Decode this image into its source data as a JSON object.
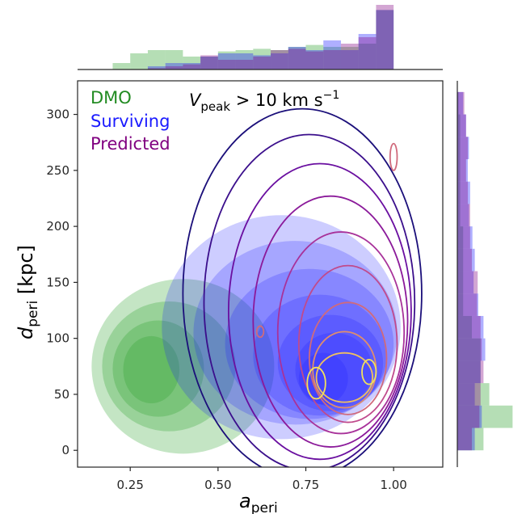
{
  "chart_data": {
    "type": "jointplot-kde",
    "annotation": {
      "main": "V",
      "sub": "peak",
      "rest": " > 10 km s",
      "sup": "−1"
    },
    "xlabel": {
      "main": "a",
      "sub": "peri"
    },
    "ylabel": {
      "main": "d",
      "sub": "peri",
      "rest": " [kpc]"
    },
    "xlim": [
      0.1,
      1.14
    ],
    "ylim": [
      -15,
      330
    ],
    "xticks": [
      0.25,
      0.5,
      0.75,
      1.0
    ],
    "xtick_labels": [
      "0.25",
      "0.50",
      "0.75",
      "1.00"
    ],
    "yticks": [
      0,
      50,
      100,
      150,
      200,
      250,
      300
    ],
    "ytick_labels": [
      "0",
      "50",
      "100",
      "150",
      "200",
      "250",
      "300"
    ],
    "legend": {
      "placement": "top-left",
      "entries": [
        {
          "label": "DMO",
          "color": "#228B22"
        },
        {
          "label": "Surviving",
          "color": "#1a1aff"
        },
        {
          "label": "Predicted",
          "color": "#800080"
        }
      ]
    },
    "series": [
      {
        "name": "DMO",
        "color": "#2ca02c",
        "style": "filled-kde",
        "levels": [
          {
            "center": [
              0.4,
              75
            ],
            "rx": 0.26,
            "ry": 78
          },
          {
            "center": [
              0.36,
              75
            ],
            "rx": 0.19,
            "ry": 58
          },
          {
            "center": [
              0.33,
              73
            ],
            "rx": 0.13,
            "ry": 43
          },
          {
            "center": [
              0.31,
              72
            ],
            "rx": 0.08,
            "ry": 30
          }
        ]
      },
      {
        "name": "Surviving",
        "color": "#1a1aff",
        "style": "filled-kde",
        "levels": [
          {
            "center": [
              0.68,
              110
            ],
            "rx": 0.34,
            "ry": 100
          },
          {
            "center": [
              0.72,
              105
            ],
            "rx": 0.29,
            "ry": 82
          },
          {
            "center": [
              0.76,
              95
            ],
            "rx": 0.24,
            "ry": 67
          },
          {
            "center": [
              0.79,
              85
            ],
            "rx": 0.19,
            "ry": 54
          },
          {
            "center": [
              0.82,
              78
            ],
            "rx": 0.15,
            "ry": 43
          },
          {
            "center": [
              0.83,
              72
            ],
            "rx": 0.11,
            "ry": 33
          },
          {
            "center": [
              0.8,
              64
            ],
            "rx": 0.07,
            "ry": 23
          }
        ]
      },
      {
        "name": "Predicted",
        "style": "contour-kde",
        "colors": [
          "#1b0f7a",
          "#3b0f8c",
          "#6a0fa0",
          "#8b1a9a",
          "#a8329a",
          "#c04a8c",
          "#d06a7c",
          "#e08e6c",
          "#f0c060"
        ],
        "levels": [
          {
            "center": [
              0.74,
              140
            ],
            "rx": 0.34,
            "ry": 165
          },
          {
            "center": [
              0.76,
              132
            ],
            "rx": 0.3,
            "ry": 150
          },
          {
            "center": [
              0.79,
              124
            ],
            "rx": 0.26,
            "ry": 132
          },
          {
            "center": [
              0.82,
              115
            ],
            "rx": 0.22,
            "ry": 112
          },
          {
            "center": [
              0.85,
              105
            ],
            "rx": 0.18,
            "ry": 90
          },
          {
            "center": [
              0.87,
              95
            ],
            "rx": 0.14,
            "ry": 70
          },
          {
            "center": [
              0.87,
              82
            ],
            "rx": 0.11,
            "ry": 50
          },
          {
            "center": [
              0.86,
              72
            ],
            "rx": 0.09,
            "ry": 34
          },
          {
            "center": [
              0.86,
              65
            ],
            "rx": 0.08,
            "ry": 22
          }
        ],
        "peaks": [
          {
            "center": [
              0.78,
              60
            ],
            "rx": 0.026,
            "ry": 14,
            "color": "#f2e15c"
          },
          {
            "center": [
              0.93,
              70
            ],
            "rx": 0.02,
            "ry": 11,
            "color": "#f2e15c"
          },
          {
            "center": [
              1.0,
              262
            ],
            "rx": 0.01,
            "ry": 12,
            "color": "#d06a7c"
          },
          {
            "center": [
              0.62,
              106
            ],
            "rx": 0.01,
            "ry": 5,
            "color": "#d06a7c"
          }
        ]
      }
    ],
    "marginal_x": {
      "bins": [
        0.2,
        0.25,
        0.3,
        0.35,
        0.4,
        0.45,
        0.5,
        0.55,
        0.6,
        0.65,
        0.7,
        0.75,
        0.8,
        0.85,
        0.9,
        0.95,
        1.0
      ],
      "series": [
        {
          "name": "DMO",
          "color": "#2ca02c",
          "values": [
            0.1,
            0.25,
            0.3,
            0.3,
            0.2,
            0.2,
            0.28,
            0.3,
            0.32,
            0.3,
            0.35,
            0.38,
            0.35,
            0.35,
            0.4,
            0.92
          ]
        },
        {
          "name": "Surviving",
          "color": "#1a1aff",
          "values": [
            0.0,
            0.0,
            0.05,
            0.1,
            0.1,
            0.2,
            0.25,
            0.25,
            0.22,
            0.25,
            0.35,
            0.3,
            0.45,
            0.3,
            0.55,
            0.92
          ]
        },
        {
          "name": "Predicted",
          "color": "#800080",
          "values": [
            0.0,
            0.0,
            0.02,
            0.05,
            0.08,
            0.22,
            0.15,
            0.15,
            0.2,
            0.3,
            0.32,
            0.28,
            0.3,
            0.4,
            0.5,
            1.0
          ]
        }
      ]
    },
    "marginal_y": {
      "bins": [
        0,
        20,
        40,
        60,
        80,
        100,
        120,
        140,
        160,
        180,
        200,
        220,
        240,
        260,
        280,
        300,
        320
      ],
      "series": [
        {
          "name": "DMO",
          "color": "#2ca02c",
          "values": [
            0.45,
            0.95,
            0.55,
            0.4,
            0.4,
            0.25,
            0.1,
            0.1,
            0.1,
            0.1,
            0.05,
            0.05,
            0.05,
            0.05,
            0.05,
            0.02
          ]
        },
        {
          "name": "Surviving",
          "color": "#1a1aff",
          "values": [
            0.3,
            0.42,
            0.3,
            0.4,
            0.48,
            0.45,
            0.36,
            0.28,
            0.3,
            0.26,
            0.2,
            0.22,
            0.18,
            0.2,
            0.15,
            0.1
          ]
        },
        {
          "name": "Predicted",
          "color": "#800080",
          "values": [
            0.25,
            0.38,
            0.4,
            0.45,
            0.42,
            0.4,
            0.34,
            0.35,
            0.25,
            0.22,
            0.22,
            0.18,
            0.15,
            0.18,
            0.15,
            0.12
          ]
        }
      ]
    }
  }
}
